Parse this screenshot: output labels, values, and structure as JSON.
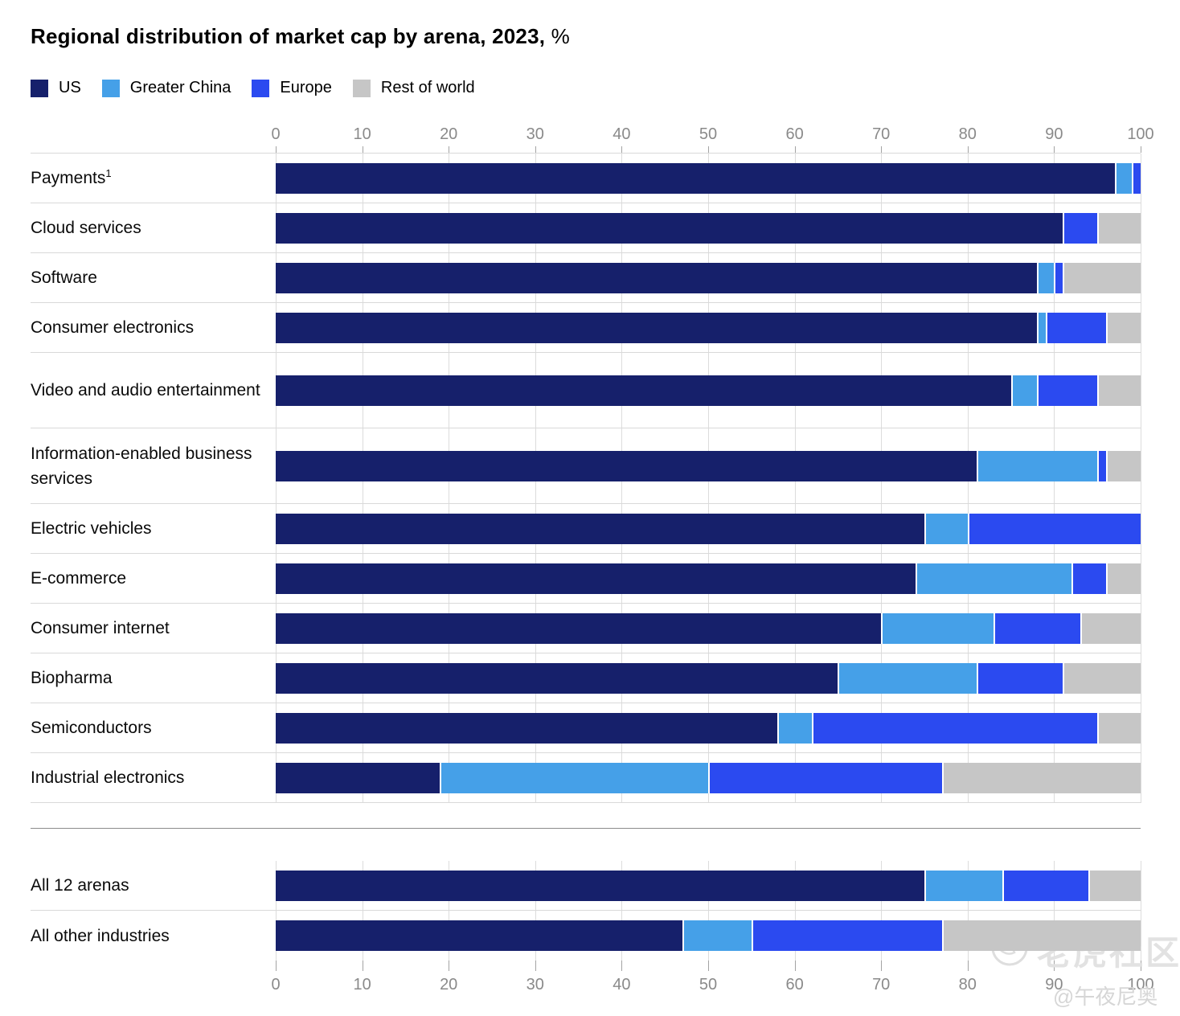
{
  "title": {
    "main": "Regional distribution of market cap by arena, 2023,",
    "suffix": "%"
  },
  "legend": [
    {
      "label": "US",
      "color": "#16206b"
    },
    {
      "label": "Greater China",
      "color": "#45a0e8"
    },
    {
      "label": "Europe",
      "color": "#2b4af0"
    },
    {
      "label": "Rest of world",
      "color": "#c6c6c6"
    }
  ],
  "chart_data": {
    "type": "bar",
    "stacked": true,
    "orientation": "horizontal",
    "title": "Regional distribution of market cap by arena, 2023, %",
    "xlim": [
      0,
      100
    ],
    "ticks": [
      0,
      10,
      20,
      30,
      40,
      50,
      60,
      70,
      80,
      90,
      100
    ],
    "grid": true,
    "legend_position": "top-left",
    "series_names": [
      "US",
      "Greater China",
      "Europe",
      "Rest of world"
    ],
    "series_colors": [
      "#16206b",
      "#45a0e8",
      "#2b4af0",
      "#c6c6c6"
    ],
    "rows": [
      {
        "label": "Payments",
        "sup": "1",
        "values": [
          97,
          2,
          1,
          0
        ],
        "tall": false
      },
      {
        "label": "Cloud services",
        "values": [
          91,
          0,
          4,
          5
        ],
        "tall": false
      },
      {
        "label": "Software",
        "values": [
          88,
          2,
          1,
          9
        ],
        "tall": false
      },
      {
        "label": "Consumer electronics",
        "values": [
          88,
          1,
          7,
          4
        ],
        "tall": false
      },
      {
        "label": "Video and audio entertainment",
        "values": [
          85,
          3,
          7,
          5
        ],
        "tall": true
      },
      {
        "label": "Information-enabled business services",
        "values": [
          81,
          14,
          1,
          4
        ],
        "tall": true
      },
      {
        "label": "Electric vehicles",
        "values": [
          75,
          5,
          20,
          0
        ],
        "tall": false
      },
      {
        "label": "E-commerce",
        "values": [
          74,
          18,
          4,
          4
        ],
        "tall": false
      },
      {
        "label": "Consumer internet",
        "values": [
          70,
          13,
          10,
          7
        ],
        "tall": false
      },
      {
        "label": "Biopharma",
        "values": [
          65,
          16,
          10,
          9
        ],
        "tall": false
      },
      {
        "label": "Semiconductors",
        "values": [
          58,
          4,
          33,
          5
        ],
        "tall": false
      },
      {
        "label": "Industrial electronics",
        "values": [
          19,
          31,
          27,
          23
        ],
        "tall": false
      }
    ],
    "summary_rows": [
      {
        "label": "All 12 arenas",
        "values": [
          75,
          9,
          10,
          6
        ],
        "tall": false
      },
      {
        "label": "All other industries",
        "values": [
          47,
          8,
          22,
          23
        ],
        "tall": false
      }
    ]
  },
  "watermarks": {
    "community": "老虎社区",
    "author": "@午夜尼奥"
  }
}
